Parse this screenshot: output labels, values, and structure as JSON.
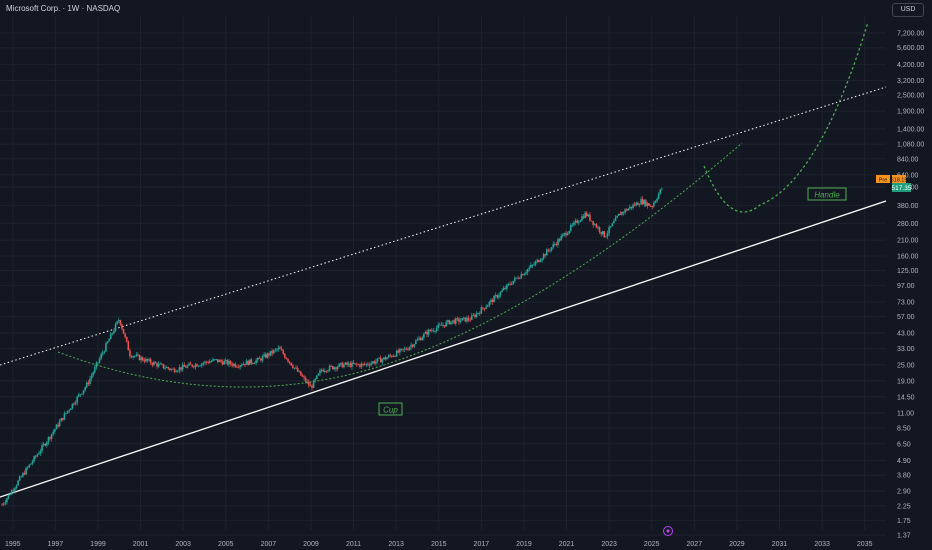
{
  "header": {
    "title": "Microsoft Corp. · 1W · NASDAQ",
    "currency": "USD"
  },
  "price_badges": {
    "prev_label": "Pre",
    "prev_value": "518.15",
    "last_value": "517.35"
  },
  "annotations": {
    "cup": "Cup",
    "handle": "Handle"
  },
  "colors": {
    "background": "#131722",
    "grid": "#1e222d",
    "up": "#26a69a",
    "down": "#ef5350",
    "guide": "#4caf50",
    "channel": "#ffffff",
    "prev_badge": "#f7931a",
    "last_badge": "#1e9e7e"
  },
  "chart_data": {
    "type": "line",
    "title": "Microsoft Corp. · 1W · NASDAQ",
    "scale": "log",
    "x_ticks": [
      "1995",
      "1997",
      "1999",
      "2001",
      "2003",
      "2005",
      "2007",
      "2009",
      "2011",
      "2013",
      "2015",
      "2017",
      "2019",
      "2021",
      "2023",
      "2025",
      "2027",
      "2029",
      "2031",
      "2033",
      "2035"
    ],
    "y_ticks": [
      "1.37",
      "1.75",
      "2.25",
      "2.90",
      "3.80",
      "4.90",
      "6.50",
      "8.50",
      "11.00",
      "14.50",
      "19.00",
      "25.00",
      "33.00",
      "43.00",
      "57.00",
      "73.00",
      "97.00",
      "125.00",
      "160.00",
      "210.00",
      "280.00",
      "380.00",
      "520.00",
      "640.00",
      "840.00",
      "1,080.00",
      "1,400.00",
      "1,900.00",
      "2,500.00",
      "3,200.00",
      "4,200.00",
      "5,600.00",
      "7,200.00"
    ],
    "ylim": [
      1.3,
      11000
    ],
    "series": [
      {
        "x": [
          1994.5,
          1995.5,
          1996.5,
          1997.5,
          1998.5,
          1999.5,
          2000.0,
          2000.5,
          2001.5,
          2002.5,
          2003.5,
          2004.5,
          2005.5,
          2006.5,
          2007.5,
          2008.3,
          2009.0,
          2009.5,
          2010.5,
          2011.5,
          2012.5,
          2013.5,
          2014.5,
          2015.5,
          2016.5,
          2017.5,
          2018.5,
          2019.5,
          2020.5,
          2021.5,
          2021.9,
          2022.8,
          2023.5,
          2024.5,
          2025.0,
          2025.5
        ],
        "y": [
          2.3,
          3.9,
          6.5,
          11,
          18,
          38,
          55,
          30,
          26,
          23,
          25,
          27,
          25,
          27,
          33,
          23,
          17,
          23,
          25,
          25,
          28,
          33,
          44,
          52,
          55,
          75,
          105,
          140,
          200,
          290,
          330,
          225,
          330,
          410,
          375,
          517
        ]
      }
    ]
  }
}
